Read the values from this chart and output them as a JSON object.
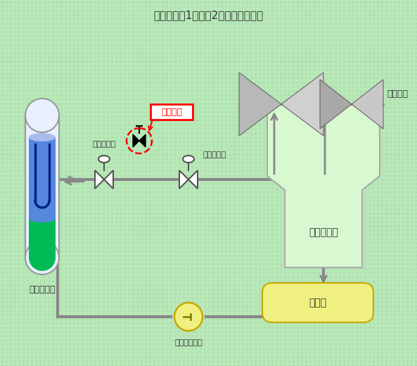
{
  "title": "伊方発電所1号機　2次系系統概略図",
  "bg_color": "#b8e8b8",
  "line_color": "#888888",
  "line_width": 3.0,
  "kondenser_fill": "#d8f8d0",
  "kondenser_edge": "#aaaaaa",
  "daki_fill": "#f0f080",
  "daki_edge": "#c8a800",
  "pump_fill": "#f0f080",
  "pump_edge": "#c8a800",
  "sg_outer_fill": "#e8f0ff",
  "sg_outer_edge": "#999999",
  "sg_green_fill": "#00bb55",
  "sg_blue_fill": "#5588dd",
  "label_color": "#333333",
  "red_text": "当該箇所",
  "label_sg": "蒸気発生器",
  "label_turbine": "タービン",
  "label_kondenser": "復　水　器",
  "label_daki": "脱気器",
  "label_pump": "主給水ポンプ",
  "label_valve1": "主蒸隔離弁",
  "label_valve2": "主蒸気止弁"
}
